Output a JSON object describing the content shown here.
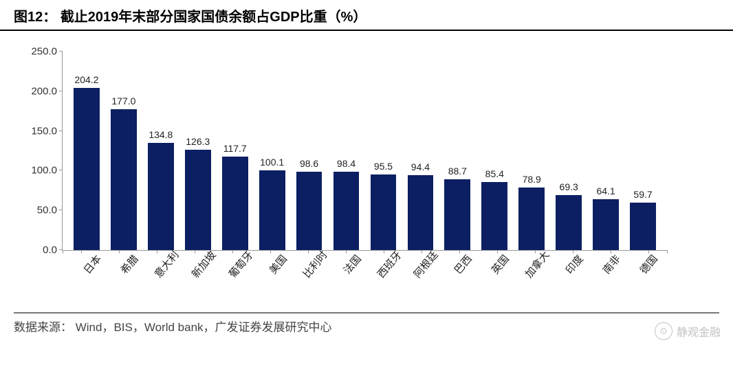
{
  "title_prefix": "图12：",
  "title_text": "截止2019年末部分国家国债余额占GDP比重（%）",
  "source_label": "数据来源：",
  "source_text": "Wind，BIS，World bank，广发证券发展研究中心",
  "watermark_icon": "⊙",
  "watermark_text": "静观金融",
  "chart": {
    "type": "bar",
    "bar_color": "#0c1f63",
    "background": "#ffffff",
    "axis_color": "#999999",
    "text_color": "#222222",
    "ylim": [
      0,
      250
    ],
    "ytick_step": 50,
    "yticks": [
      "0.0",
      "50.0",
      "100.0",
      "150.0",
      "200.0",
      "250.0"
    ],
    "bar_width_ratio": 0.7,
    "label_fontsize": 14,
    "categories": [
      "日本",
      "希腊",
      "意大利",
      "新加坡",
      "葡萄牙",
      "美国",
      "比利时",
      "法国",
      "西班牙",
      "阿根廷",
      "巴西",
      "英国",
      "加拿大",
      "印度",
      "南非",
      "德国"
    ],
    "values": [
      204.2,
      177.0,
      134.8,
      126.3,
      117.7,
      100.1,
      98.6,
      98.4,
      95.5,
      94.4,
      88.7,
      85.4,
      78.9,
      69.3,
      64.1,
      59.7
    ],
    "value_labels": [
      "204.2",
      "177.0",
      "134.8",
      "126.3",
      "117.7",
      "100.1",
      "98.6",
      "98.4",
      "95.5",
      "94.4",
      "88.7",
      "85.4",
      "78.9",
      "69.3",
      "64.1",
      "59.7"
    ]
  }
}
